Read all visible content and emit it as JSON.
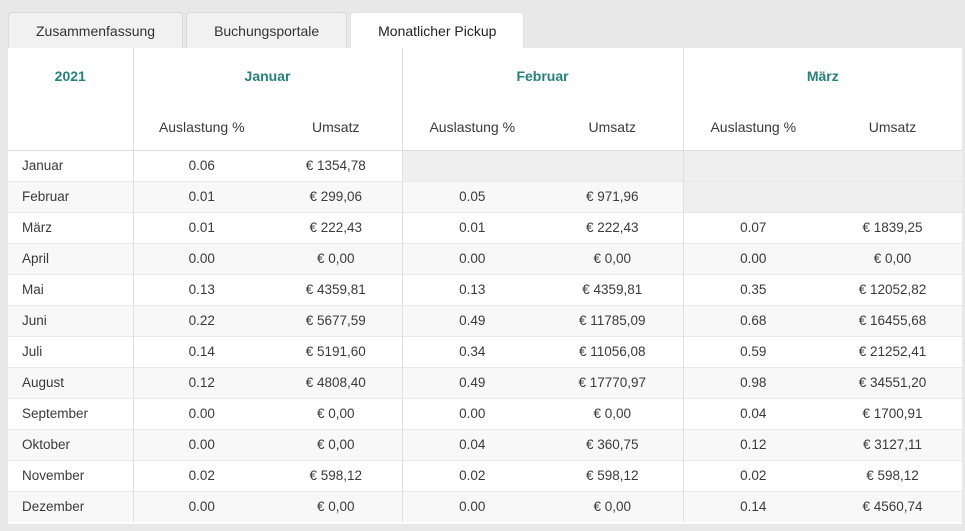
{
  "tabs": [
    {
      "label": "Zusammenfassung",
      "active": false
    },
    {
      "label": "Buchungsportale",
      "active": false
    },
    {
      "label": "Monatlicher Pickup",
      "active": true
    }
  ],
  "table": {
    "year_label": "2021",
    "group_headers": [
      "Januar",
      "Februar",
      "März"
    ],
    "subheaders": [
      "Auslastung %",
      "Umsatz"
    ],
    "rows": [
      {
        "label": "Januar",
        "cells": [
          "0.06",
          "€ 1354,78",
          null,
          null,
          null,
          null
        ]
      },
      {
        "label": "Februar",
        "cells": [
          "0.01",
          "€ 299,06",
          "0.05",
          "€ 971,96",
          null,
          null
        ]
      },
      {
        "label": "März",
        "cells": [
          "0.01",
          "€ 222,43",
          "0.01",
          "€ 222,43",
          "0.07",
          "€ 1839,25"
        ]
      },
      {
        "label": "April",
        "cells": [
          "0.00",
          "€ 0,00",
          "0.00",
          "€ 0,00",
          "0.00",
          "€ 0,00"
        ]
      },
      {
        "label": "Mai",
        "cells": [
          "0.13",
          "€ 4359,81",
          "0.13",
          "€ 4359,81",
          "0.35",
          "€ 12052,82"
        ]
      },
      {
        "label": "Juni",
        "cells": [
          "0.22",
          "€ 5677,59",
          "0.49",
          "€ 11785,09",
          "0.68",
          "€ 16455,68"
        ]
      },
      {
        "label": "Juli",
        "cells": [
          "0.14",
          "€ 5191,60",
          "0.34",
          "€ 11056,08",
          "0.59",
          "€ 21252,41"
        ]
      },
      {
        "label": "August",
        "cells": [
          "0.12",
          "€ 4808,40",
          "0.49",
          "€ 17770,97",
          "0.98",
          "€ 34551,20"
        ]
      },
      {
        "label": "September",
        "cells": [
          "0.00",
          "€ 0,00",
          "0.00",
          "€ 0,00",
          "0.04",
          "€ 1700,91"
        ]
      },
      {
        "label": "Oktober",
        "cells": [
          "0.00",
          "€ 0,00",
          "0.04",
          "€ 360,75",
          "0.12",
          "€ 3127,11"
        ]
      },
      {
        "label": "November",
        "cells": [
          "0.02",
          "€ 598,12",
          "0.02",
          "€ 598,12",
          "0.02",
          "€ 598,12"
        ]
      },
      {
        "label": "Dezember",
        "cells": [
          "0.00",
          "€ 0,00",
          "0.00",
          "€ 0,00",
          "0.14",
          "€ 4560,74"
        ]
      }
    ]
  },
  "colors": {
    "accent_teal": "#26807b",
    "page_background": "#e8e8e8",
    "panel_background": "#ffffff",
    "disabled_cell": "#efefef",
    "zebra_row": "#f8f8f8"
  }
}
